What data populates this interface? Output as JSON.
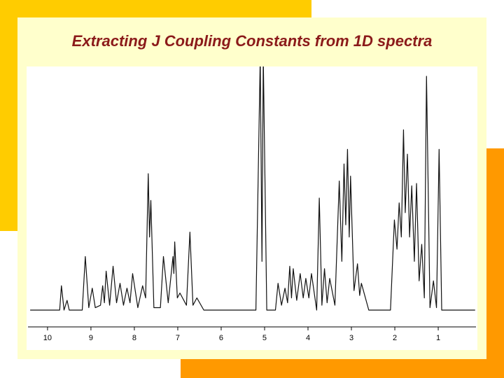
{
  "chart_data": {
    "type": "line",
    "title": "Extracting J Coupling Constants from 1D spectra",
    "x": [
      10.4,
      9.72,
      9.68,
      9.62,
      9.55,
      9.5,
      9.2,
      9.13,
      9.05,
      8.97,
      8.9,
      8.78,
      8.73,
      8.69,
      8.65,
      8.57,
      8.49,
      8.41,
      8.33,
      8.25,
      8.17,
      8.1,
      8.04,
      7.92,
      7.81,
      7.74,
      7.68,
      7.65,
      7.62,
      7.55,
      7.4,
      7.33,
      7.22,
      7.11,
      7.09,
      7.07,
      7.01,
      6.95,
      6.8,
      6.72,
      6.65,
      6.56,
      6.4,
      5.2,
      5.1,
      5.06,
      5.03,
      4.95,
      4.75,
      4.69,
      4.61,
      4.53,
      4.47,
      4.42,
      4.38,
      4.34,
      4.26,
      4.18,
      4.11,
      4.05,
      3.98,
      3.92,
      3.8,
      3.74,
      3.68,
      3.62,
      3.56,
      3.5,
      3.38,
      3.28,
      3.22,
      3.17,
      3.13,
      3.09,
      3.05,
      3.02,
      2.94,
      2.86,
      2.81,
      2.77,
      2.6,
      2.1,
      2.01,
      1.95,
      1.9,
      1.85,
      1.8,
      1.76,
      1.71,
      1.66,
      1.61,
      1.55,
      1.5,
      1.44,
      1.38,
      1.32,
      1.27,
      1.19,
      1.11,
      1.04,
      0.98,
      0.92,
      0.15
    ],
    "values": [
      0,
      0,
      10,
      0,
      4,
      0,
      0,
      22,
      1,
      9,
      1,
      2,
      10,
      3,
      16,
      2,
      18,
      3,
      11,
      2,
      9,
      3,
      15,
      1,
      10,
      5,
      56,
      30,
      45,
      1,
      1,
      22,
      3,
      22,
      15,
      28,
      5,
      7,
      2,
      32,
      2,
      5,
      0,
      0,
      104,
      20,
      104,
      0,
      0,
      11,
      2,
      9,
      3,
      18,
      5,
      17,
      4,
      15,
      5,
      13,
      5,
      15,
      0,
      46,
      2,
      17,
      3,
      13,
      2,
      53,
      20,
      60,
      35,
      66,
      30,
      55,
      8,
      19,
      6,
      11,
      0,
      0,
      37,
      25,
      44,
      30,
      74,
      40,
      64,
      30,
      51,
      20,
      52,
      12,
      27,
      5,
      96,
      1,
      12,
      1,
      66,
      0,
      0
    ],
    "color": "#111111",
    "xlim": [
      10.45,
      0.13
    ],
    "xticks": [
      10,
      9,
      8,
      7,
      6,
      5,
      4,
      3,
      2,
      1
    ],
    "ylim": [
      0,
      100
    ]
  }
}
